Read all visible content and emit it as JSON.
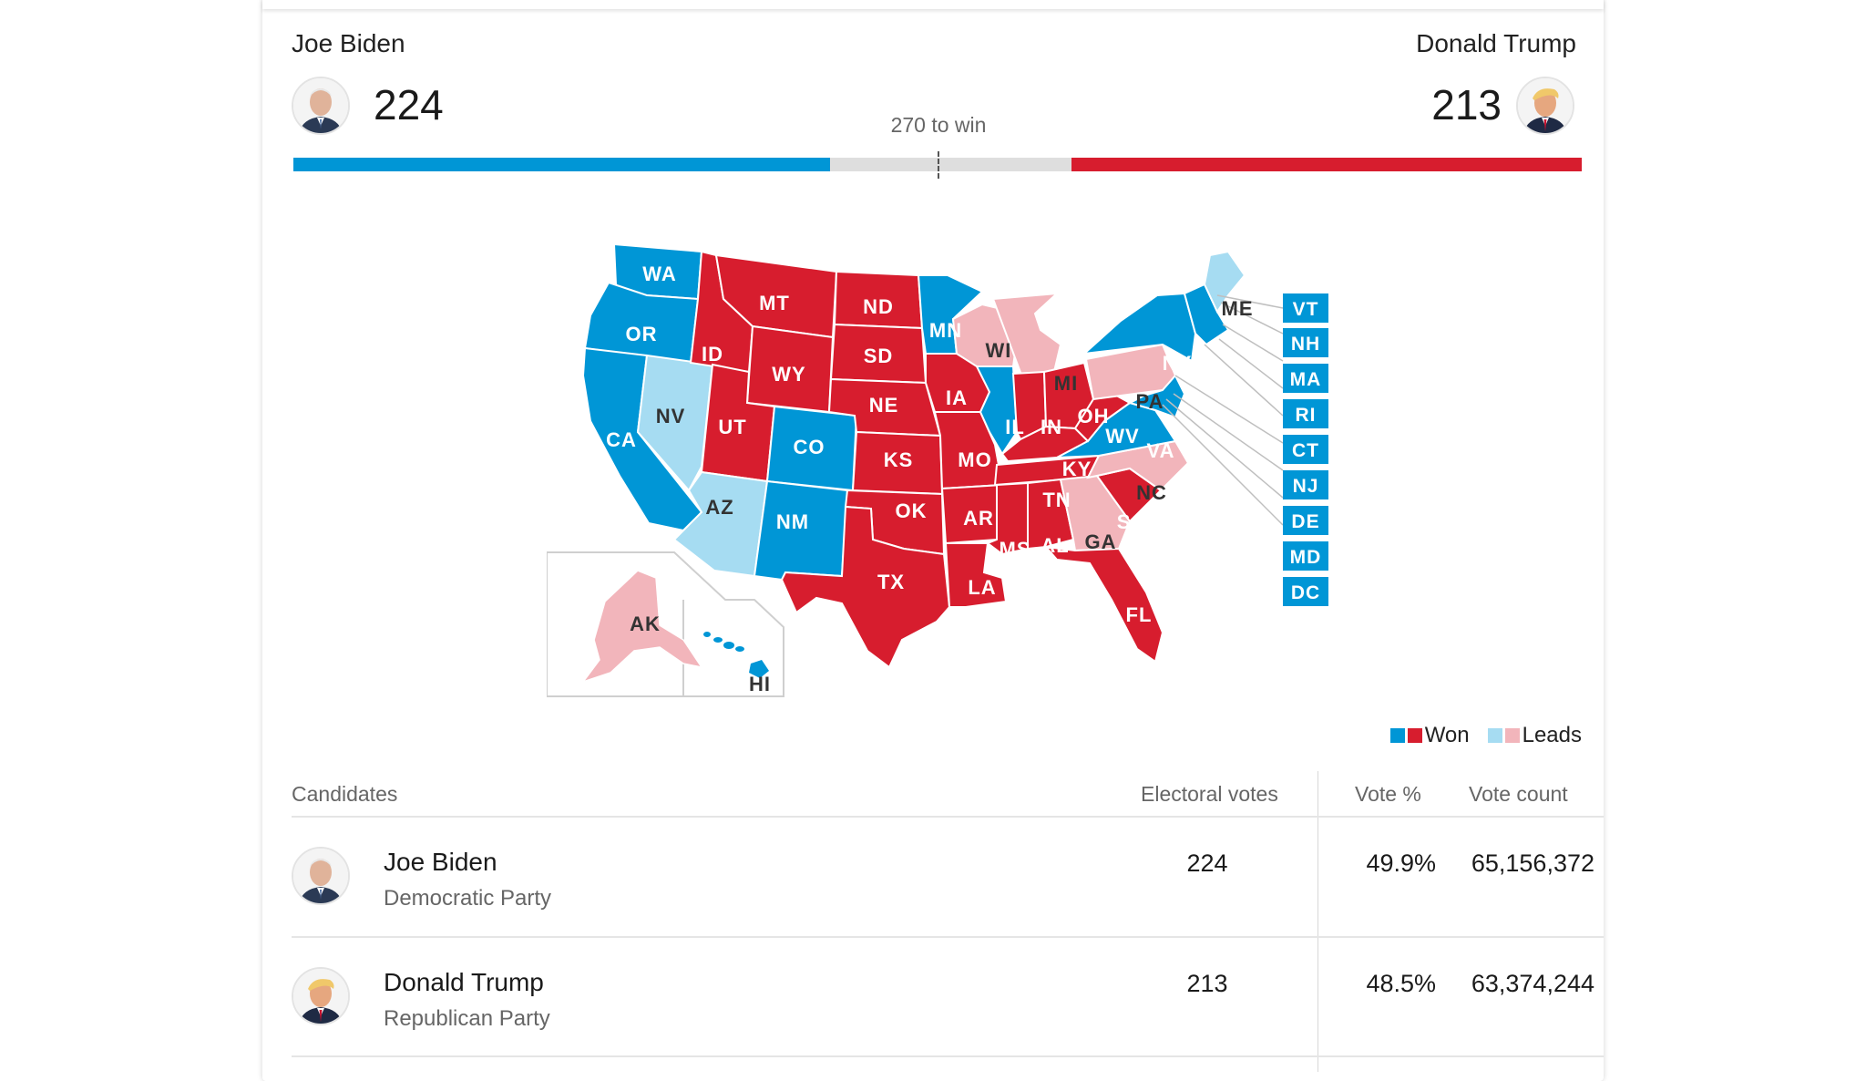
{
  "header": {
    "biden_name": "Joe Biden",
    "trump_name": "Donald Trump",
    "biden_ev": "224",
    "trump_ev": "213",
    "to_win": "270 to win"
  },
  "progress": {
    "total_ev": 538,
    "biden_ev": 224,
    "trump_ev": 213,
    "threshold": 270
  },
  "colors": {
    "dem_won": "#0096d6",
    "rep_won": "#d71d2e",
    "dem_leads": "#a6dcf2",
    "rep_leads": "#f2b5bb",
    "uncalled": "#dedede"
  },
  "map": {
    "small_states": [
      "VT",
      "NH",
      "MA",
      "RI",
      "CT",
      "NJ",
      "DE",
      "MD",
      "DC"
    ],
    "state_labels": [
      "WA",
      "OR",
      "CA",
      "NV",
      "ID",
      "MT",
      "WY",
      "UT",
      "AZ",
      "CO",
      "NM",
      "ND",
      "SD",
      "NE",
      "KS",
      "OK",
      "TX",
      "MN",
      "IA",
      "MO",
      "AR",
      "LA",
      "WI",
      "IL",
      "MI",
      "IN",
      "OH",
      "KY",
      "TN",
      "MS",
      "AL",
      "GA",
      "FL",
      "SC",
      "NC",
      "VA",
      "WV",
      "PA",
      "NY",
      "ME",
      "AK",
      "HI"
    ]
  },
  "legend": {
    "won_label": "Won",
    "leads_label": "Leads"
  },
  "table": {
    "headers": {
      "candidates": "Candidates",
      "electoral_votes": "Electoral votes",
      "vote_pct": "Vote %",
      "vote_count": "Vote count"
    },
    "rows": [
      {
        "name": "Joe Biden",
        "party": "Democratic Party",
        "ev": "224",
        "pct": "49.9%",
        "count": "65,156,372"
      },
      {
        "name": "Donald Trump",
        "party": "Republican Party",
        "ev": "213",
        "pct": "48.5%",
        "count": "63,374,244"
      }
    ]
  }
}
